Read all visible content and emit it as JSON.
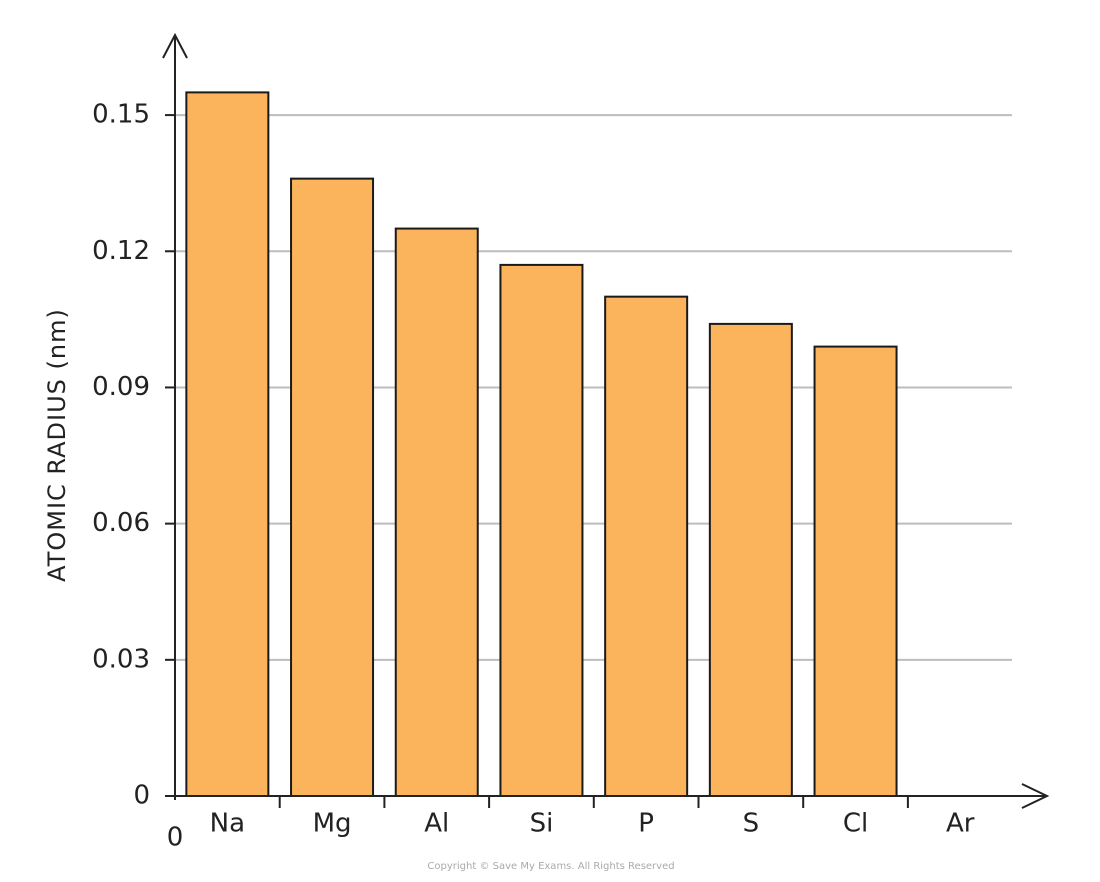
{
  "chart_data": {
    "type": "bar",
    "y_axis_label": "ATOMIC RADIUS (nm)",
    "origin_label": "0",
    "categories": [
      "Na",
      "Mg",
      "Al",
      "Si",
      "P",
      "S",
      "Cl",
      "Ar"
    ],
    "values": [
      0.155,
      0.136,
      0.125,
      0.117,
      0.11,
      0.104,
      0.099,
      null
    ],
    "color": "#fbb45c",
    "ylim": [
      0,
      0.165
    ],
    "yticks": [
      0,
      0.03,
      0.06,
      0.09,
      0.12,
      0.15
    ],
    "grid": true,
    "footer": "Copyright © Save My Exams. All Rights Reserved"
  }
}
